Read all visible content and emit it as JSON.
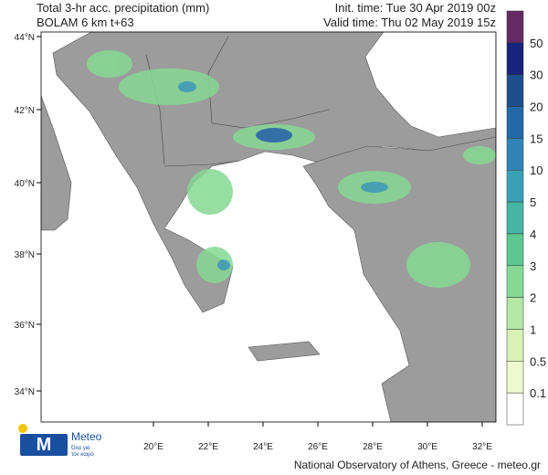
{
  "header": {
    "title": "Total 3-hr acc. precipitation (mm)",
    "model": "BOLAM 6 km t+63",
    "init_time": "Init. time: Tue 30 Apr 2019 00z",
    "valid_time": "Valid time: Thu 02 May 2019 15z"
  },
  "map": {
    "lat_labels": [
      "44°N",
      "42°N",
      "40°N",
      "38°N",
      "36°N",
      "34°N"
    ],
    "lon_labels": [
      "20°E",
      "22°E",
      "24°E",
      "26°E",
      "28°E",
      "30°E",
      "32°E"
    ]
  },
  "legend": {
    "labels": [
      "50",
      "30",
      "20",
      "15",
      "10",
      "5",
      "4",
      "3",
      "2",
      "1",
      "0.5",
      "0.1"
    ],
    "colors": [
      "#642a63",
      "#17237c",
      "#1d4f8f",
      "#2468a8",
      "#3283b8",
      "#3aa0b6",
      "#45b6a3",
      "#5cc88f",
      "#86d994",
      "#b3e8a6",
      "#d8f2b6",
      "#eff9cf",
      "#ffffff"
    ]
  },
  "logo": {
    "name": "Meteo",
    "tagline_1": "Όλα για",
    "tagline_2": "τον καιρό"
  },
  "footer": "National Observatory of Athens, Greece - meteo.gr"
}
